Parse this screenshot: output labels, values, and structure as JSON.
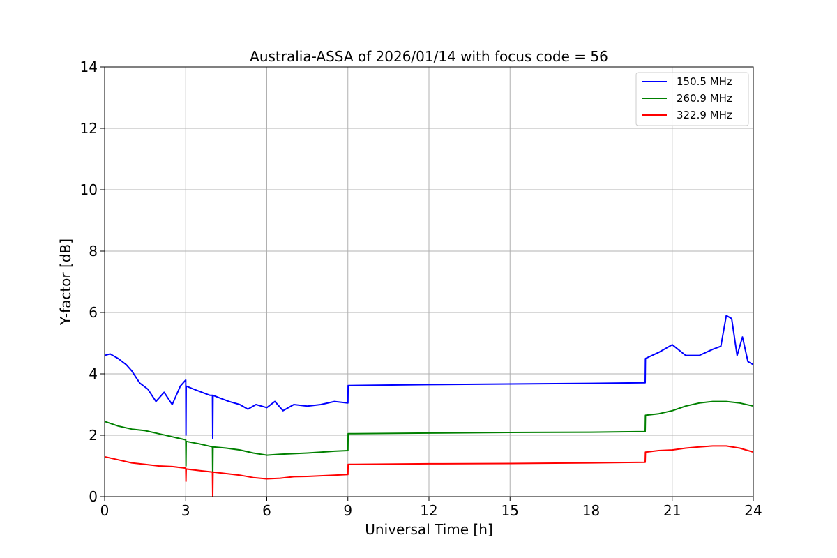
{
  "chart_data": {
    "type": "line",
    "title": "Australia-ASSA of 2026/01/14 with focus code = 56",
    "xlabel": "Universal Time [h]",
    "ylabel": "Y-factor [dB]",
    "xlim": [
      0,
      24
    ],
    "ylim": [
      0,
      14
    ],
    "xticks": [
      0,
      3,
      6,
      9,
      12,
      15,
      18,
      21,
      24
    ],
    "yticks": [
      0,
      2,
      4,
      6,
      8,
      10,
      12,
      14
    ],
    "grid": true,
    "legend_position": "top-right",
    "series": [
      {
        "name": "150.5 MHz",
        "color": "#0000ff",
        "x": [
          0,
          0.2,
          0.5,
          0.8,
          1.0,
          1.3,
          1.6,
          1.9,
          2.2,
          2.5,
          2.8,
          3.0,
          3.01,
          3.02,
          3.3,
          3.6,
          3.9,
          3.99,
          4.0,
          4.01,
          4.3,
          4.6,
          5.0,
          5.3,
          5.6,
          6.0,
          6.3,
          6.6,
          7.0,
          7.5,
          8.0,
          8.5,
          9.0,
          9.01,
          12.0,
          15.0,
          18.0,
          20.0,
          20.01,
          20.5,
          21.0,
          21.5,
          22.0,
          22.5,
          22.8,
          23.0,
          23.2,
          23.4,
          23.6,
          23.8,
          24.0
        ],
        "y": [
          4.6,
          4.65,
          4.5,
          4.3,
          4.1,
          3.7,
          3.5,
          3.1,
          3.4,
          3.0,
          3.6,
          3.8,
          2.0,
          3.6,
          3.5,
          3.4,
          3.3,
          3.3,
          1.9,
          3.3,
          3.2,
          3.1,
          3.0,
          2.85,
          3.0,
          2.9,
          3.1,
          2.8,
          3.0,
          2.95,
          3.0,
          3.1,
          3.05,
          3.62,
          3.65,
          3.67,
          3.69,
          3.71,
          4.5,
          4.7,
          4.95,
          4.6,
          4.6,
          4.8,
          4.9,
          5.9,
          5.8,
          4.6,
          5.2,
          4.4,
          4.3
        ]
      },
      {
        "name": "260.9 MHz",
        "color": "#008000",
        "x": [
          0,
          0.5,
          1.0,
          1.5,
          2.0,
          2.5,
          3.0,
          3.01,
          3.02,
          3.5,
          3.99,
          4.0,
          4.01,
          4.5,
          5.0,
          5.5,
          6.0,
          6.5,
          7.0,
          7.5,
          8.0,
          8.5,
          9.0,
          9.01,
          12.0,
          15.0,
          18.0,
          20.0,
          20.01,
          20.5,
          21.0,
          21.5,
          22.0,
          22.5,
          23.0,
          23.5,
          24.0
        ],
        "y": [
          2.45,
          2.3,
          2.2,
          2.15,
          2.05,
          1.95,
          1.85,
          1.0,
          1.8,
          1.72,
          1.62,
          0.6,
          1.62,
          1.58,
          1.52,
          1.42,
          1.35,
          1.38,
          1.4,
          1.42,
          1.45,
          1.48,
          1.5,
          2.05,
          2.07,
          2.09,
          2.1,
          2.12,
          2.65,
          2.7,
          2.8,
          2.95,
          3.05,
          3.1,
          3.1,
          3.05,
          2.95
        ]
      },
      {
        "name": "322.9 MHz",
        "color": "#ff0000",
        "x": [
          0,
          0.5,
          1.0,
          1.5,
          2.0,
          2.5,
          3.0,
          3.01,
          3.02,
          3.5,
          3.99,
          4.0,
          4.01,
          4.5,
          5.0,
          5.5,
          6.0,
          6.5,
          7.0,
          7.5,
          8.0,
          8.5,
          9.0,
          9.01,
          12.0,
          15.0,
          18.0,
          20.0,
          20.01,
          20.5,
          21.0,
          21.5,
          22.0,
          22.5,
          23.0,
          23.5,
          24.0
        ],
        "y": [
          1.3,
          1.2,
          1.1,
          1.05,
          1.0,
          0.98,
          0.93,
          0.5,
          0.9,
          0.85,
          0.8,
          0.0,
          0.8,
          0.75,
          0.7,
          0.62,
          0.58,
          0.6,
          0.65,
          0.66,
          0.68,
          0.7,
          0.72,
          1.05,
          1.07,
          1.08,
          1.1,
          1.12,
          1.45,
          1.5,
          1.52,
          1.58,
          1.62,
          1.65,
          1.65,
          1.58,
          1.45
        ]
      }
    ]
  }
}
